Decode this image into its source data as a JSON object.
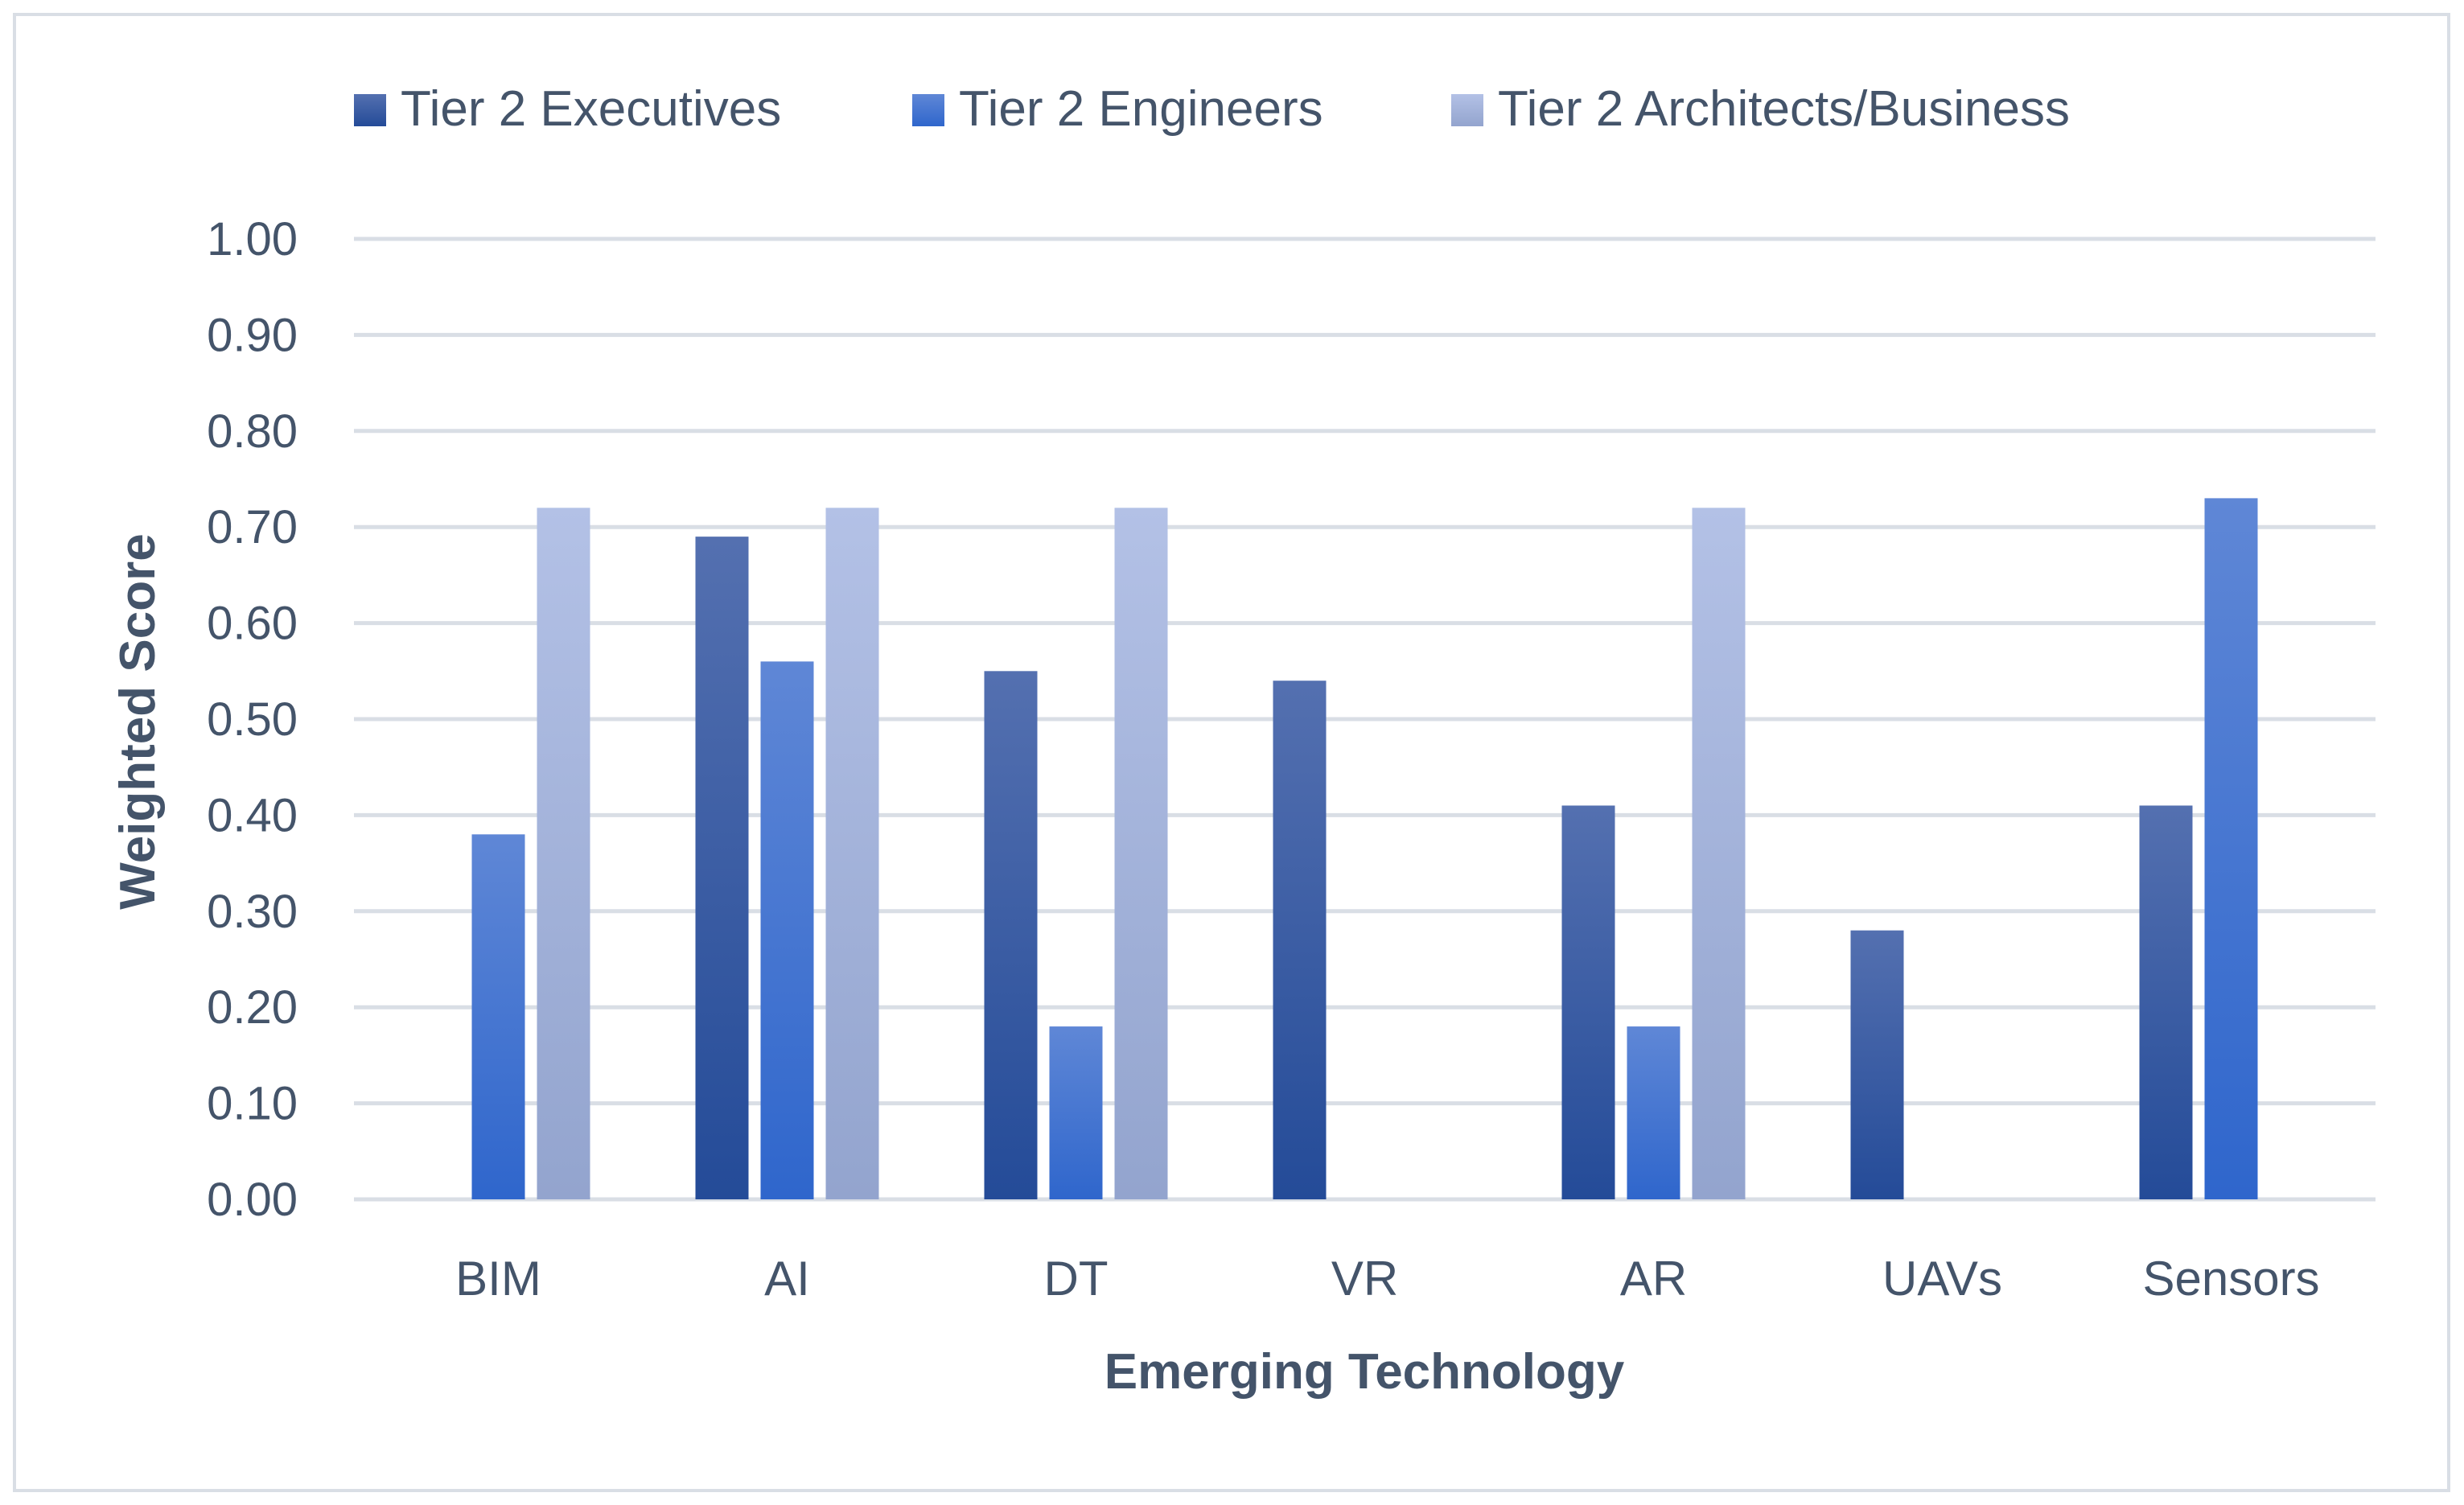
{
  "chart_data": {
    "type": "bar",
    "title": "",
    "xlabel": "Emerging Technology",
    "ylabel": "Weighted Score",
    "ylim": [
      0,
      1
    ],
    "yticks": [
      "0.00",
      "0.10",
      "0.20",
      "0.30",
      "0.40",
      "0.50",
      "0.60",
      "0.70",
      "0.80",
      "0.90",
      "1.00"
    ],
    "grid": true,
    "legend_position": "top",
    "categories": [
      "BIM",
      "AI",
      "DT",
      "VR",
      "AR",
      "UAVs",
      "Sensors"
    ],
    "series": [
      {
        "name": "Tier 2 Executives",
        "color": "#2B4F9B",
        "values": [
          0,
          0.69,
          0.55,
          0.54,
          0.41,
          0.28,
          0.41
        ]
      },
      {
        "name": "Tier 2 Engineers",
        "color": "#3F74D0",
        "values": [
          0.38,
          0.56,
          0.18,
          0,
          0.18,
          0,
          0.73
        ]
      },
      {
        "name": "Tier 2 Architects/Business",
        "color": "#A7B6DE",
        "values": [
          0.72,
          0.72,
          0.72,
          0,
          0.72,
          0,
          0
        ]
      }
    ]
  }
}
